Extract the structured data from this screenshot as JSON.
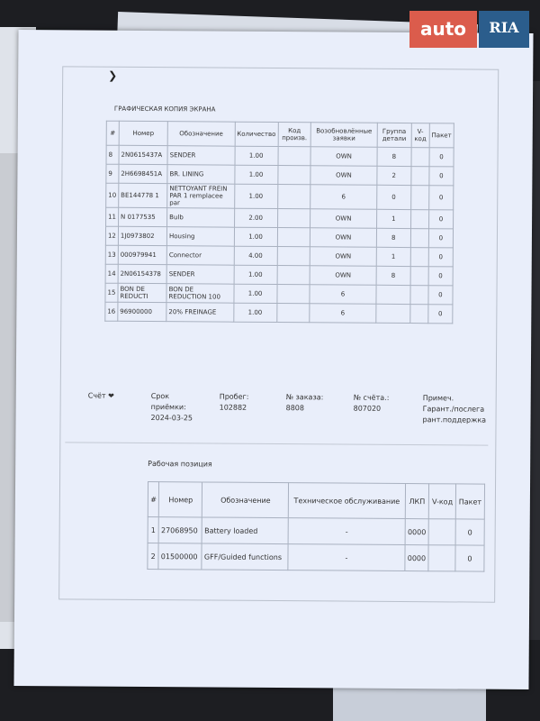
{
  "logo": {
    "auto": "auto",
    "ria": "RIA"
  },
  "document": {
    "caption": "ГРАФИЧЕСКАЯ КОПИЯ ЭКРАНА",
    "parts_table": {
      "headers": [
        "#",
        "Номер",
        "Обозначение",
        "Количество",
        "Код произв.",
        "Возобновлённые заявки",
        "Группа детали",
        "V-код",
        "Пакет"
      ],
      "rows": [
        [
          "8",
          "2N0615437A",
          "SENDER",
          "1.00",
          "",
          "OWN",
          "8",
          "",
          "0"
        ],
        [
          "9",
          "2H6698451A",
          "BR. LINING",
          "1.00",
          "",
          "OWN",
          "2",
          "",
          "0"
        ],
        [
          "10",
          "BE144778 1",
          "NETTOYANT FREIN PAR 1 remplacee par",
          "1.00",
          "",
          "6",
          "0",
          "",
          "0"
        ],
        [
          "11",
          "N 0177535",
          "Bulb",
          "2.00",
          "",
          "OWN",
          "1",
          "",
          "0"
        ],
        [
          "12",
          "1J0973802",
          "Housing",
          "1.00",
          "",
          "OWN",
          "8",
          "",
          "0"
        ],
        [
          "13",
          "000979941",
          "Connector",
          "4.00",
          "",
          "OWN",
          "1",
          "",
          "0"
        ],
        [
          "14",
          "2N06154378",
          "SENDER",
          "1.00",
          "",
          "OWN",
          "8",
          "",
          "0"
        ],
        [
          "15",
          "BON DE REDUCTI",
          "BON DE REDUCTION 100",
          "1.00",
          "",
          "6",
          "",
          "",
          "0"
        ],
        [
          "16",
          "96900000",
          "20% FREINAGE",
          "1.00",
          "",
          "6",
          "",
          "",
          "0"
        ]
      ]
    },
    "invoice": {
      "label": "Счёт",
      "acceptance_label": "Срок приёмки:",
      "acceptance_date": "2024-03-25",
      "mileage_label": "Пробег:",
      "mileage": "102882",
      "order_label": "№ заказа:",
      "order": "8808",
      "invoice_no_label": "№ счёта.:",
      "invoice_no": "807020",
      "note_label": "Примеч.",
      "note": "Гарант./послегарант.поддержка"
    },
    "work_position": {
      "title": "Рабочая позиция",
      "headers": [
        "#",
        "Номер",
        "Обозначение",
        "Техническое обслуживание",
        "ЛКП",
        "V-код",
        "Пакет"
      ],
      "rows": [
        [
          "1",
          "27068950",
          "Battery loaded",
          "-",
          "0000",
          "",
          "0"
        ],
        [
          "2",
          "01500000",
          "GFF/Guided functions",
          "-",
          "0000",
          "",
          "0"
        ]
      ]
    }
  }
}
